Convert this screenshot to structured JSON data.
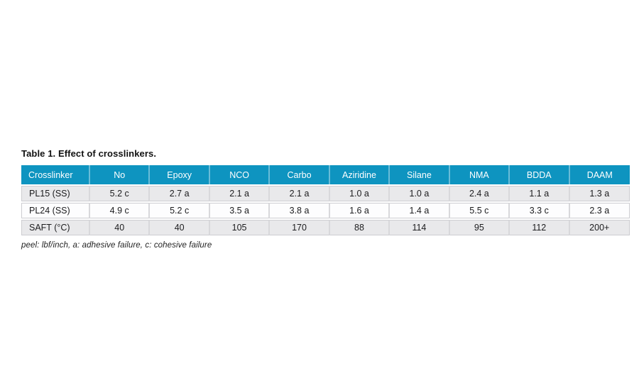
{
  "table": {
    "title": "Table 1. Effect of crosslinkers.",
    "columns": [
      "Crosslinker",
      "No",
      "Epoxy",
      "NCO",
      "Carbo",
      "Aziridine",
      "Silane",
      "NMA",
      "BDDA",
      "DAAM"
    ],
    "rows": [
      {
        "label": "PL15 (SS)",
        "values": [
          "5.2 c",
          "2.7 a",
          "2.1 a",
          "2.1 a",
          "1.0 a",
          "1.0 a",
          "2.4 a",
          "1.1 a",
          "1.3 a"
        ]
      },
      {
        "label": "PL24 (SS)",
        "values": [
          "4.9 c",
          "5.2 c",
          "3.5 a",
          "3.8 a",
          "1.6 a",
          "1.4 a",
          "5.5 c",
          "3.3 c",
          "2.3 a"
        ]
      },
      {
        "label": "SAFT (°C)",
        "values": [
          "40",
          "40",
          "105",
          "170",
          "88",
          "114",
          "95",
          "112",
          "200+"
        ]
      }
    ],
    "footnote": "peel: lbf/inch, a: adhesive failure, c: cohesive failure"
  },
  "colors": {
    "header_bg": "#0e94c0",
    "header_text": "#ffffff",
    "row_alt_bg": "#e9e9eb",
    "row_plain_bg": "#fdfdfe",
    "text": "#1c1c1e"
  }
}
